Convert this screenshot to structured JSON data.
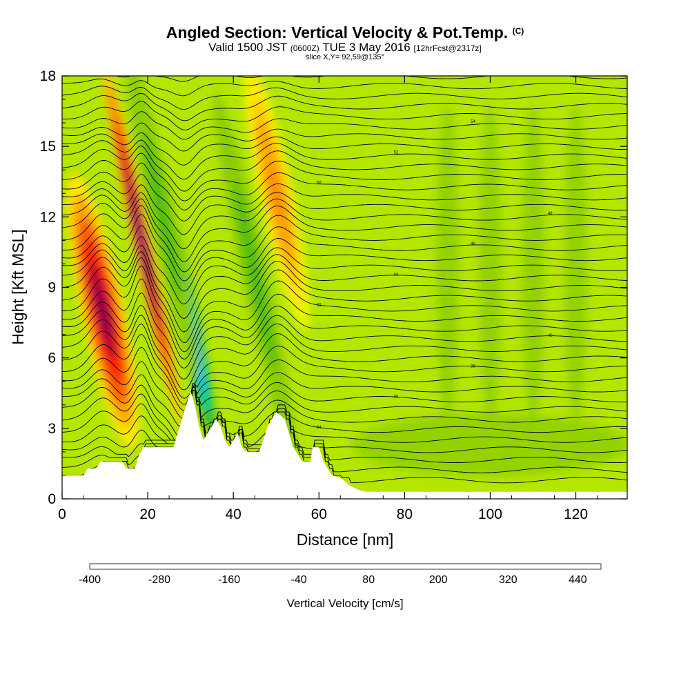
{
  "chart_data": {
    "type": "heatmap",
    "title": "Angled Section: Vertical Velocity & Pot.Temp.",
    "title_unit": "(C)",
    "subtitle": {
      "valid": "Valid 1500 JST",
      "utc": "(0600Z)",
      "date": "TUE 3 May 2016",
      "forecast": "[12hrFcst@2317z]"
    },
    "slice_label": "slice X,Y= 92,59@135°",
    "xlabel": "Distance [nm]",
    "ylabel": "Height [Kft MSL]",
    "xlim": [
      0,
      132
    ],
    "ylim": [
      0,
      18
    ],
    "x_ticks": [
      0,
      20,
      40,
      60,
      80,
      100,
      120
    ],
    "y_ticks": [
      0,
      3,
      6,
      9,
      12,
      15,
      18
    ],
    "grid": false,
    "colorbar": {
      "title": "Vertical Velocity [cm/s]",
      "min": -400,
      "step": 40,
      "labels": [
        -400,
        -280,
        -160,
        -40,
        80,
        200,
        320,
        440
      ],
      "colors": [
        "#0000ff",
        "#0a46ff",
        "#0a8cf5",
        "#00c8f0",
        "#00e6e6",
        "#00d2a0",
        "#00be5a",
        "#28b41e",
        "#50be10",
        "#8ccd00",
        "#b4e600",
        "#e6f500",
        "#ffe600",
        "#ffc800",
        "#ffa500",
        "#ff8200",
        "#ff5a00",
        "#ff2800",
        "#dc0014",
        "#b40032",
        "#8c0050",
        "#6e0078"
      ]
    },
    "terrain": [
      [
        0,
        1.0
      ],
      [
        5,
        1.0
      ],
      [
        6,
        1.3
      ],
      [
        8,
        1.3
      ],
      [
        9,
        1.6
      ],
      [
        14,
        1.6
      ],
      [
        15,
        1.3
      ],
      [
        17,
        1.3
      ],
      [
        18,
        1.9
      ],
      [
        19,
        2.2
      ],
      [
        26,
        2.2
      ],
      [
        27,
        2.8
      ],
      [
        28,
        3.4
      ],
      [
        29,
        4.0
      ],
      [
        30,
        4.6
      ],
      [
        31,
        4.0
      ],
      [
        32,
        3.1
      ],
      [
        33,
        2.5
      ],
      [
        34,
        2.8
      ],
      [
        35,
        3.1
      ],
      [
        36,
        3.4
      ],
      [
        37,
        3.1
      ],
      [
        38,
        2.5
      ],
      [
        39,
        2.2
      ],
      [
        40,
        2.5
      ],
      [
        41,
        2.8
      ],
      [
        42,
        2.2
      ],
      [
        43,
        2.0
      ],
      [
        46,
        2.0
      ],
      [
        47,
        2.5
      ],
      [
        48,
        3.1
      ],
      [
        49,
        3.4
      ],
      [
        50,
        3.7
      ],
      [
        52,
        3.4
      ],
      [
        53,
        2.8
      ],
      [
        54,
        2.2
      ],
      [
        55,
        1.9
      ],
      [
        56,
        1.6
      ],
      [
        58,
        1.6
      ],
      [
        58.5,
        2.2
      ],
      [
        60,
        2.2
      ],
      [
        61,
        1.6
      ],
      [
        62,
        1.3
      ],
      [
        63,
        1.0
      ],
      [
        65,
        0.9
      ],
      [
        67,
        0.6
      ],
      [
        69,
        0.4
      ],
      [
        71,
        0.3
      ],
      [
        132,
        0.3
      ]
    ],
    "updrafts": [
      {
        "center_x": 9.5,
        "center_y": 8.0,
        "half_width_x": 5,
        "half_height_y": 6,
        "peak_cm_s": 400
      },
      {
        "center_x": 18.5,
        "center_y": 11.0,
        "half_width_x": 2,
        "half_height_y": 8,
        "peak_cm_s": 480
      },
      {
        "center_x": 50.0,
        "center_y": 13.0,
        "half_width_x": 4,
        "half_height_y": 6,
        "peak_cm_s": 220
      }
    ],
    "downdrafts": [
      {
        "center_x": 28.5,
        "center_y": 8.5,
        "half_width_x": 2.5,
        "half_height_y": 6,
        "peak_cm_s": -400
      },
      {
        "center_x": 23.5,
        "center_y": 12.0,
        "half_width_x": 3,
        "half_height_y": 7,
        "peak_cm_s": -60
      },
      {
        "center_x": 45.0,
        "center_y": 9.5,
        "half_width_x": 3,
        "half_height_y": 8,
        "peak_cm_s": -60
      }
    ],
    "contour_labels": [
      "34",
      "36",
      "38",
      "40",
      "42",
      "44",
      "46",
      "48",
      "50",
      "52",
      "54"
    ]
  }
}
